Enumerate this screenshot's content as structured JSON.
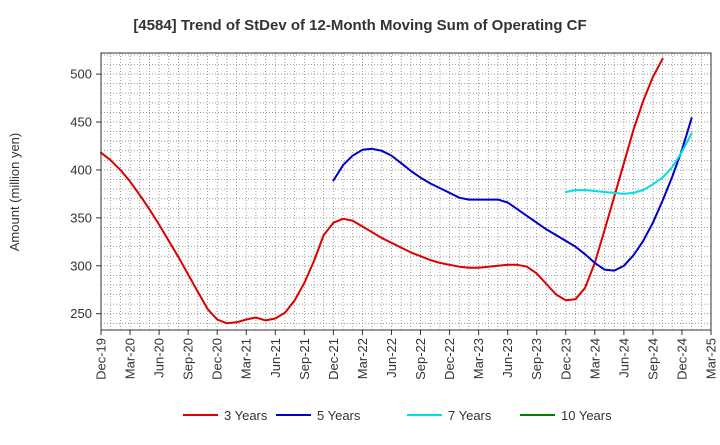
{
  "chart_data": {
    "type": "line",
    "title": "[4584]  Trend of StDev of 12-Month Moving Sum of Operating CF",
    "ylabel": "Amount (million yen)",
    "ylim": [
      233,
      522
    ],
    "yticks": [
      250,
      300,
      350,
      400,
      450,
      500
    ],
    "xlim": [
      "2019-12",
      "2025-03"
    ],
    "xticks": [
      "Dec-19",
      "Mar-20",
      "Jun-20",
      "Sep-20",
      "Dec-20",
      "Mar-21",
      "Jun-21",
      "Sep-21",
      "Dec-21",
      "Mar-22",
      "Jun-22",
      "Sep-22",
      "Dec-22",
      "Mar-23",
      "Jun-23",
      "Sep-23",
      "Dec-23",
      "Mar-24",
      "Jun-24",
      "Sep-24",
      "Dec-24",
      "Mar-25"
    ],
    "grid": true,
    "legend_position": "bottom",
    "series": [
      {
        "name": "3 Years",
        "color": "#dd0000",
        "points": [
          [
            "2019-12",
            418
          ],
          [
            "2020-01",
            410
          ],
          [
            "2020-02",
            400
          ],
          [
            "2020-03",
            388
          ],
          [
            "2020-04",
            374
          ],
          [
            "2020-05",
            359
          ],
          [
            "2020-06",
            343
          ],
          [
            "2020-07",
            326
          ],
          [
            "2020-08",
            309
          ],
          [
            "2020-09",
            291
          ],
          [
            "2020-10",
            273
          ],
          [
            "2020-11",
            255
          ],
          [
            "2020-12",
            244
          ],
          [
            "2021-01",
            240
          ],
          [
            "2021-02",
            241
          ],
          [
            "2021-03",
            244
          ],
          [
            "2021-04",
            246
          ],
          [
            "2021-05",
            243
          ],
          [
            "2021-06",
            245
          ],
          [
            "2021-07",
            251
          ],
          [
            "2021-08",
            264
          ],
          [
            "2021-09",
            282
          ],
          [
            "2021-10",
            305
          ],
          [
            "2021-11",
            332
          ],
          [
            "2021-12",
            345
          ],
          [
            "2022-01",
            349
          ],
          [
            "2022-02",
            347
          ],
          [
            "2022-03",
            341
          ],
          [
            "2022-04",
            335
          ],
          [
            "2022-05",
            329
          ],
          [
            "2022-06",
            324
          ],
          [
            "2022-07",
            319
          ],
          [
            "2022-08",
            314
          ],
          [
            "2022-09",
            310
          ],
          [
            "2022-10",
            306
          ],
          [
            "2022-11",
            303
          ],
          [
            "2022-12",
            301
          ],
          [
            "2023-01",
            299
          ],
          [
            "2023-02",
            298
          ],
          [
            "2023-03",
            298
          ],
          [
            "2023-04",
            299
          ],
          [
            "2023-05",
            300
          ],
          [
            "2023-06",
            301
          ],
          [
            "2023-07",
            301
          ],
          [
            "2023-08",
            299
          ],
          [
            "2023-09",
            292
          ],
          [
            "2023-10",
            281
          ],
          [
            "2023-11",
            270
          ],
          [
            "2023-12",
            264
          ],
          [
            "2024-01",
            265
          ],
          [
            "2024-02",
            277
          ],
          [
            "2024-03",
            303
          ],
          [
            "2024-04",
            337
          ],
          [
            "2024-05",
            372
          ],
          [
            "2024-06",
            407
          ],
          [
            "2024-07",
            442
          ],
          [
            "2024-08",
            472
          ],
          [
            "2024-09",
            497
          ],
          [
            "2024-10",
            516
          ]
        ]
      },
      {
        "name": "5 Years",
        "color": "#0000cc",
        "points": [
          [
            "2021-12",
            389
          ],
          [
            "2022-01",
            405
          ],
          [
            "2022-02",
            415
          ],
          [
            "2022-03",
            421
          ],
          [
            "2022-04",
            422
          ],
          [
            "2022-05",
            420
          ],
          [
            "2022-06",
            415
          ],
          [
            "2022-07",
            407
          ],
          [
            "2022-08",
            399
          ],
          [
            "2022-09",
            392
          ],
          [
            "2022-10",
            386
          ],
          [
            "2022-11",
            381
          ],
          [
            "2022-12",
            376
          ],
          [
            "2023-01",
            371
          ],
          [
            "2023-02",
            369
          ],
          [
            "2023-03",
            369
          ],
          [
            "2023-04",
            369
          ],
          [
            "2023-05",
            369
          ],
          [
            "2023-06",
            366
          ],
          [
            "2023-07",
            359
          ],
          [
            "2023-08",
            352
          ],
          [
            "2023-09",
            345
          ],
          [
            "2023-10",
            338
          ],
          [
            "2023-11",
            332
          ],
          [
            "2023-12",
            326
          ],
          [
            "2024-01",
            320
          ],
          [
            "2024-02",
            312
          ],
          [
            "2024-03",
            303
          ],
          [
            "2024-04",
            296
          ],
          [
            "2024-05",
            295
          ],
          [
            "2024-06",
            300
          ],
          [
            "2024-07",
            311
          ],
          [
            "2024-08",
            326
          ],
          [
            "2024-09",
            345
          ],
          [
            "2024-10",
            368
          ],
          [
            "2024-11",
            393
          ],
          [
            "2024-12",
            421
          ],
          [
            "2025-01",
            454
          ]
        ]
      },
      {
        "name": "7 Years",
        "color": "#00e0e0",
        "points": [
          [
            "2023-12",
            377
          ],
          [
            "2024-01",
            379
          ],
          [
            "2024-02",
            379
          ],
          [
            "2024-03",
            378
          ],
          [
            "2024-04",
            377
          ],
          [
            "2024-05",
            376
          ],
          [
            "2024-06",
            375
          ],
          [
            "2024-07",
            376
          ],
          [
            "2024-08",
            379
          ],
          [
            "2024-09",
            385
          ],
          [
            "2024-10",
            392
          ],
          [
            "2024-11",
            403
          ],
          [
            "2024-12",
            419
          ],
          [
            "2025-01",
            438
          ]
        ]
      },
      {
        "name": "10 Years",
        "color": "#008000",
        "points": []
      }
    ]
  }
}
